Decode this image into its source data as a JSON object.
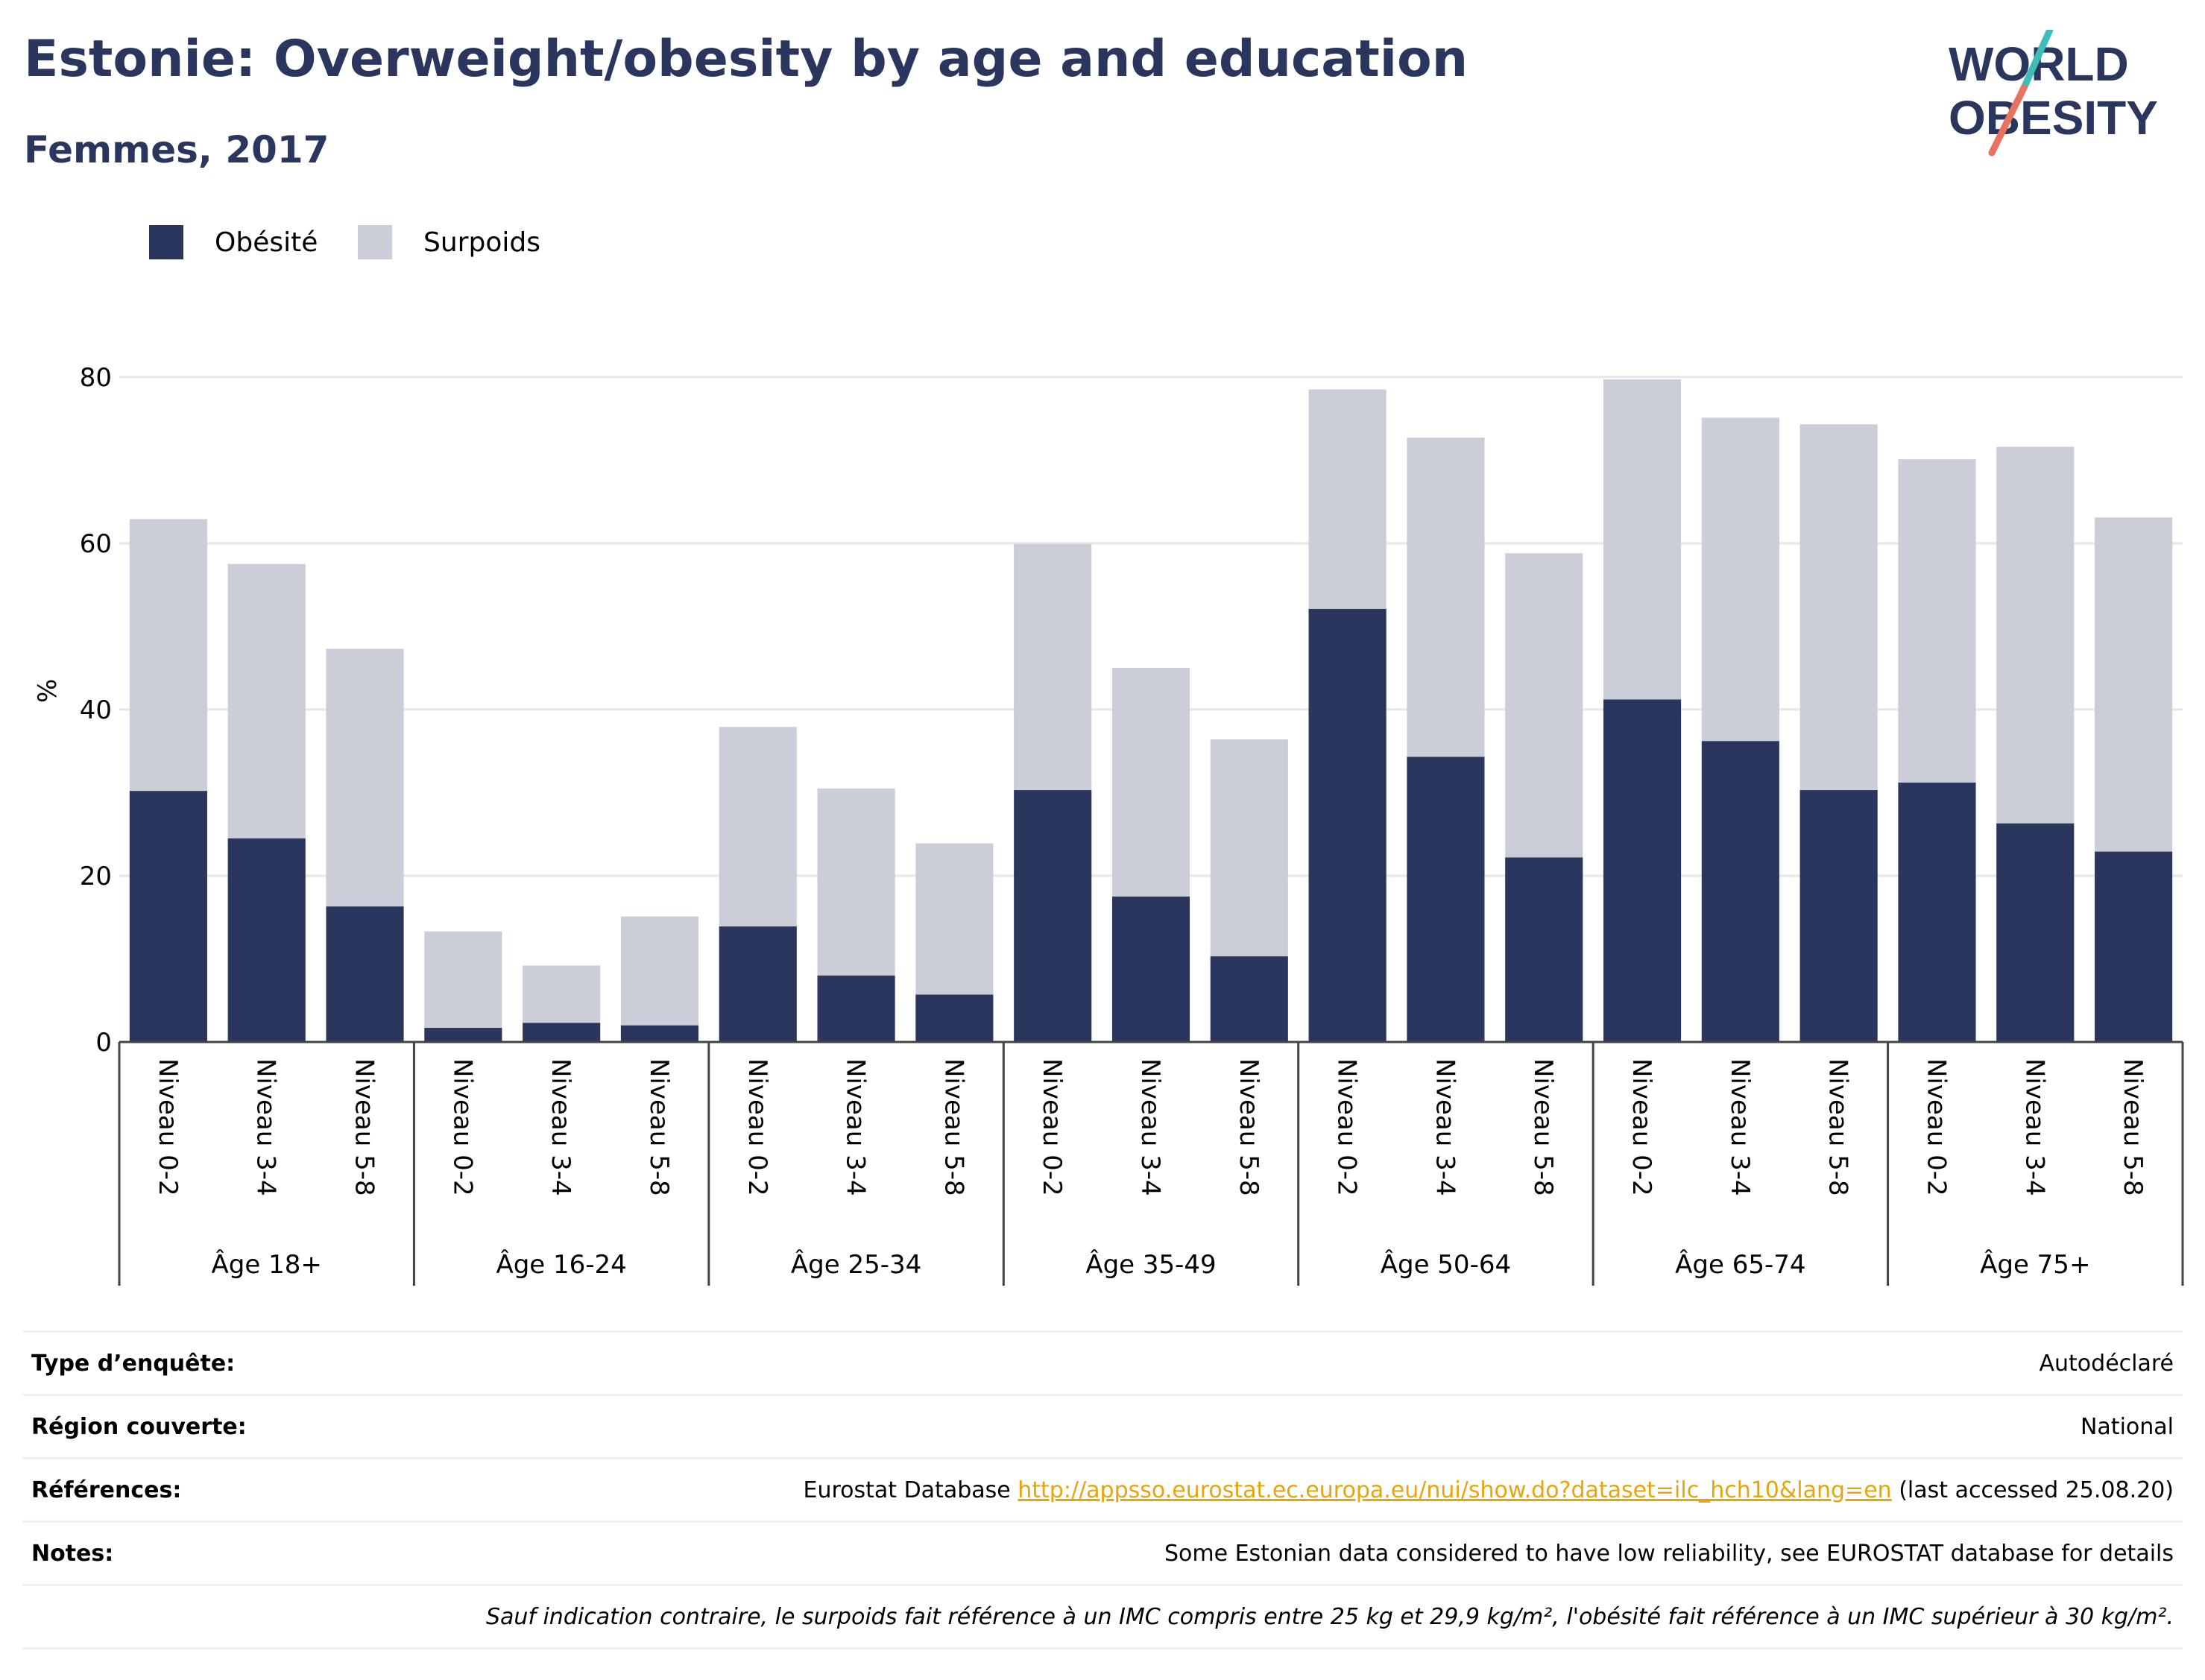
{
  "header": {
    "title": "Estonie: Overweight/obesity by age and education",
    "subtitle": "Femmes, 2017"
  },
  "logo": {
    "line1": "WORLD",
    "line2": "OBESITY",
    "accent_teal": "#3dbdb5",
    "accent_coral": "#e8725e"
  },
  "colors": {
    "obesity": "#2b365e",
    "overweight": "#cbcdd9",
    "grid": "#e6e6e6",
    "axis": "#444444",
    "link": "#e8a40c"
  },
  "chart_data": {
    "type": "bar",
    "stacked": true,
    "ylabel": "%",
    "ylim": [
      0,
      85
    ],
    "yticks": [
      0,
      20,
      40,
      60,
      80
    ],
    "grid": true,
    "legend_position": "top-left",
    "groups": [
      {
        "label": "Âge 18+",
        "categories": [
          "Niveau 0-2",
          "Niveau 3-4",
          "Niveau 5-8"
        ],
        "obesity": [
          30.2,
          24.5,
          16.3
        ],
        "overweight": [
          32.7,
          33.0,
          31.0
        ]
      },
      {
        "label": "Âge 16-24",
        "categories": [
          "Niveau 0-2",
          "Niveau 3-4",
          "Niveau 5-8"
        ],
        "obesity": [
          1.7,
          2.3,
          2.0
        ],
        "overweight": [
          11.6,
          6.9,
          13.1
        ]
      },
      {
        "label": "Âge 25-34",
        "categories": [
          "Niveau 0-2",
          "Niveau 3-4",
          "Niveau 5-8"
        ],
        "obesity": [
          13.9,
          8.0,
          5.7
        ],
        "overweight": [
          24.0,
          22.5,
          18.2
        ]
      },
      {
        "label": "Âge 35-49",
        "categories": [
          "Niveau 0-2",
          "Niveau 3-4",
          "Niveau 5-8"
        ],
        "obesity": [
          30.3,
          17.5,
          10.3
        ],
        "overweight": [
          29.6,
          27.5,
          26.1
        ]
      },
      {
        "label": "Âge 50-64",
        "categories": [
          "Niveau 0-2",
          "Niveau 3-4",
          "Niveau 5-8"
        ],
        "obesity": [
          52.1,
          34.3,
          22.2
        ],
        "overweight": [
          26.4,
          38.4,
          36.6
        ]
      },
      {
        "label": "Âge 65-74",
        "categories": [
          "Niveau 0-2",
          "Niveau 3-4",
          "Niveau 5-8"
        ],
        "obesity": [
          41.2,
          36.2,
          30.3
        ],
        "overweight": [
          38.5,
          38.9,
          44.0
        ]
      },
      {
        "label": "Âge 75+",
        "categories": [
          "Niveau 0-2",
          "Niveau 3-4",
          "Niveau 5-8"
        ],
        "obesity": [
          31.2,
          26.3,
          22.9
        ],
        "overweight": [
          38.9,
          45.3,
          40.2
        ]
      }
    ],
    "series": [
      {
        "name": "Obésité"
      },
      {
        "name": "Surpoids"
      }
    ]
  },
  "info": {
    "survey_label": "Type d’enquête:",
    "survey_value": "Autodéclaré",
    "region_label": "Région couverte:",
    "region_value": "National",
    "refs_label": "Références:",
    "refs_prefix": "Eurostat Database",
    "refs_link": "http://appsso.eurostat.ec.europa.eu/nui/show.do?dataset=ilc_hch10&lang=en",
    "refs_suffix": "(last accessed 25.08.20)",
    "notes_label": "Notes:",
    "notes_value": "Some Estonian data considered to have low reliability, see EUROSTAT database for details",
    "footnote": "Sauf indication contraire, le surpoids fait référence à un IMC compris entre 25 kg et 29,9 kg/m², l'obésité fait référence à un IMC supérieur à 30 kg/m²."
  }
}
